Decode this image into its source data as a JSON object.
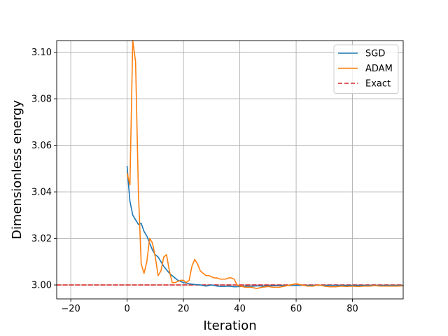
{
  "chart_data": {
    "type": "line",
    "title": "",
    "xlabel": "Iteration",
    "ylabel": "Dimensionless energy",
    "xlim": [
      -25,
      98
    ],
    "ylim": [
      2.994,
      3.105
    ],
    "xticks": [
      -20,
      0,
      20,
      40,
      60,
      80
    ],
    "xtick_labels": [
      "−20",
      "0",
      "20",
      "40",
      "60",
      "80"
    ],
    "yticks": [
      3.0,
      3.02,
      3.04,
      3.06,
      3.08,
      3.1
    ],
    "ytick_labels": [
      "3.00",
      "3.02",
      "3.04",
      "3.06",
      "3.08",
      "3.10"
    ],
    "grid": true,
    "legend_position": "upper right",
    "series": [
      {
        "name": "SGD",
        "color": "#1f77b4",
        "style": "solid",
        "x": [
          0,
          0.5,
          1,
          2,
          3,
          4,
          5,
          6,
          7,
          8,
          9,
          10,
          11,
          12,
          13,
          14,
          15,
          16,
          17,
          18,
          19,
          20,
          22,
          24,
          26,
          28,
          30,
          32,
          34,
          36,
          38,
          40,
          42,
          44,
          46,
          48,
          50,
          55,
          60,
          65,
          70,
          75,
          80,
          85,
          90,
          95,
          98
        ],
        "y": [
          3.051,
          3.043,
          3.036,
          3.03,
          3.028,
          3.026,
          3.0265,
          3.023,
          3.021,
          3.018,
          3.015,
          3.013,
          3.012,
          3.01,
          3.008,
          3.0065,
          3.005,
          3.004,
          3.003,
          3.002,
          3.0015,
          3.001,
          3.0005,
          3.0002,
          3.0,
          2.9995,
          3.0,
          2.9995,
          2.9993,
          2.9995,
          2.9992,
          2.9993,
          2.9995,
          2.9994,
          2.9996,
          2.9995,
          2.9996,
          2.9997,
          2.9998,
          2.9998,
          2.9998,
          2.9998,
          2.9998,
          2.9998,
          2.9998,
          2.9998,
          2.9998
        ]
      },
      {
        "name": "ADAM",
        "color": "#ff7f0e",
        "style": "solid",
        "x": [
          0,
          1,
          2,
          3,
          4,
          5,
          6,
          7,
          8,
          9,
          10,
          11,
          12,
          13,
          14,
          15,
          16,
          17,
          18,
          19,
          20,
          21,
          22,
          23,
          24,
          25,
          26,
          27,
          28,
          29,
          30,
          31,
          32,
          33,
          34,
          35,
          36,
          37,
          38,
          39,
          40,
          42,
          44,
          46,
          48,
          50,
          52,
          54,
          56,
          58,
          60,
          62,
          64,
          66,
          68,
          70,
          72,
          74,
          76,
          78,
          80,
          82,
          84,
          86,
          88,
          90,
          92,
          94,
          96,
          98
        ],
        "y": [
          3.048,
          3.043,
          3.11,
          3.096,
          3.04,
          3.009,
          3.005,
          3.01,
          3.02,
          3.018,
          3.012,
          3.004,
          3.006,
          3.012,
          3.013,
          3.006,
          3.001,
          3.001,
          3.0015,
          3.002,
          3.002,
          3.001,
          3.002,
          3.008,
          3.011,
          3.009,
          3.006,
          3.005,
          3.004,
          3.004,
          3.0035,
          3.003,
          3.003,
          3.0025,
          3.0025,
          3.0025,
          3.003,
          3.003,
          3.0025,
          3.0,
          2.9995,
          2.999,
          2.999,
          2.9985,
          2.999,
          2.9993,
          2.999,
          2.999,
          2.9995,
          3.0,
          3.0005,
          3.0,
          2.9995,
          2.9995,
          3.0,
          2.9995,
          2.9992,
          2.9992,
          2.9995,
          2.9993,
          2.9995,
          2.9993,
          2.9995,
          2.9995,
          2.9997,
          2.9995,
          2.9995,
          2.9995,
          2.9995,
          2.9996
        ]
      },
      {
        "name": "Exact",
        "color": "#d62728",
        "style": "dashed",
        "x": [
          -25,
          98
        ],
        "y": [
          3.0,
          3.0
        ]
      }
    ]
  }
}
